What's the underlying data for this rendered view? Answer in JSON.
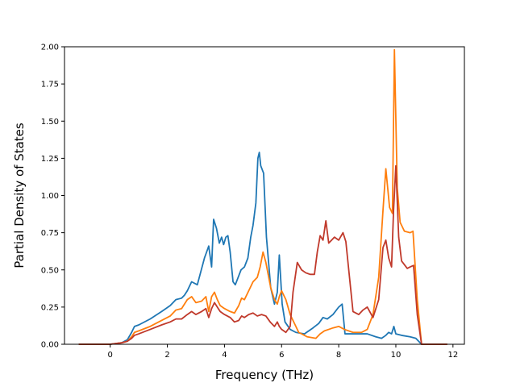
{
  "chart_data": {
    "type": "line",
    "title": "",
    "xlabel": "Frequency (THz)",
    "ylabel": "Partial Density of States",
    "xlim": [
      -1.6,
      12.4
    ],
    "ylim": [
      0,
      2.0
    ],
    "x_ticks": [
      0,
      2,
      4,
      6,
      8,
      10,
      12
    ],
    "x_tick_labels": [
      "0",
      "2",
      "4",
      "6",
      "8",
      "10",
      "12"
    ],
    "y_ticks": [
      0,
      0.25,
      0.5,
      0.75,
      1.0,
      1.25,
      1.5,
      1.75,
      2.0
    ],
    "y_tick_labels": [
      "0.00",
      "0.25",
      "0.50",
      "0.75",
      "1.00",
      "1.25",
      "1.50",
      "1.75",
      "2.00"
    ],
    "grid": false,
    "legend": "none",
    "colors": [
      "#1f77b4",
      "#ff7f0e",
      "#c0392b"
    ],
    "series": [
      {
        "color": "#1f77b4",
        "x": [
          -1.1,
          0.0,
          0.4,
          0.6,
          0.75,
          0.85,
          1.0,
          1.4,
          1.8,
          2.1,
          2.3,
          2.5,
          2.6,
          2.7,
          2.85,
          3.05,
          3.3,
          3.45,
          3.55,
          3.62,
          3.72,
          3.82,
          3.9,
          3.97,
          4.05,
          4.12,
          4.2,
          4.3,
          4.38,
          4.48,
          4.58,
          4.7,
          4.82,
          4.92,
          5.0,
          5.1,
          5.17,
          5.22,
          5.27,
          5.37,
          5.47,
          5.62,
          5.75,
          5.85,
          5.92,
          6.02,
          6.12,
          6.3,
          6.5,
          6.8,
          7.1,
          7.3,
          7.45,
          7.6,
          7.8,
          8.0,
          8.12,
          8.22,
          8.6,
          9.0,
          9.3,
          9.5,
          9.65,
          9.75,
          9.85,
          9.93,
          10.0,
          10.2,
          10.5,
          10.7,
          10.9,
          11.8
        ],
        "values": [
          0.0,
          0.0,
          0.01,
          0.03,
          0.08,
          0.12,
          0.13,
          0.17,
          0.22,
          0.26,
          0.3,
          0.31,
          0.33,
          0.36,
          0.42,
          0.4,
          0.58,
          0.66,
          0.52,
          0.84,
          0.78,
          0.68,
          0.72,
          0.67,
          0.72,
          0.73,
          0.62,
          0.42,
          0.4,
          0.45,
          0.5,
          0.52,
          0.58,
          0.72,
          0.8,
          0.95,
          1.25,
          1.29,
          1.2,
          1.15,
          0.72,
          0.38,
          0.27,
          0.35,
          0.6,
          0.27,
          0.15,
          0.1,
          0.08,
          0.07,
          0.11,
          0.14,
          0.18,
          0.17,
          0.2,
          0.25,
          0.27,
          0.07,
          0.07,
          0.07,
          0.05,
          0.04,
          0.06,
          0.08,
          0.07,
          0.12,
          0.07,
          0.06,
          0.05,
          0.04,
          0.0,
          0.0
        ]
      },
      {
        "color": "#ff7f0e",
        "x": [
          -1.1,
          0.0,
          0.4,
          0.6,
          0.75,
          0.85,
          1.0,
          1.4,
          1.8,
          2.1,
          2.3,
          2.5,
          2.7,
          2.85,
          3.0,
          3.2,
          3.35,
          3.45,
          3.55,
          3.65,
          3.75,
          3.85,
          4.0,
          4.2,
          4.35,
          4.5,
          4.6,
          4.7,
          4.85,
          5.0,
          5.15,
          5.25,
          5.35,
          5.45,
          5.62,
          5.75,
          5.85,
          5.92,
          6.0,
          6.15,
          6.3,
          6.6,
          6.9,
          7.2,
          7.35,
          7.5,
          7.65,
          7.8,
          8.0,
          8.2,
          8.5,
          8.8,
          9.0,
          9.2,
          9.4,
          9.55,
          9.65,
          9.78,
          9.88,
          9.95,
          10.05,
          10.15,
          10.3,
          10.5,
          10.6,
          10.75,
          10.9,
          11.8
        ],
        "values": [
          0.0,
          0.0,
          0.01,
          0.02,
          0.05,
          0.08,
          0.09,
          0.12,
          0.16,
          0.19,
          0.23,
          0.24,
          0.3,
          0.32,
          0.28,
          0.29,
          0.32,
          0.22,
          0.32,
          0.35,
          0.3,
          0.26,
          0.24,
          0.22,
          0.21,
          0.26,
          0.31,
          0.3,
          0.36,
          0.42,
          0.45,
          0.52,
          0.62,
          0.55,
          0.38,
          0.3,
          0.27,
          0.32,
          0.36,
          0.3,
          0.2,
          0.08,
          0.05,
          0.04,
          0.07,
          0.09,
          0.1,
          0.11,
          0.12,
          0.1,
          0.08,
          0.08,
          0.1,
          0.2,
          0.45,
          0.9,
          1.18,
          0.92,
          0.88,
          1.98,
          1.05,
          0.82,
          0.76,
          0.75,
          0.76,
          0.3,
          0.0,
          0.0
        ]
      },
      {
        "color": "#c0392b",
        "x": [
          -1.1,
          0.0,
          0.4,
          0.6,
          0.75,
          0.85,
          1.0,
          1.4,
          1.8,
          2.1,
          2.3,
          2.5,
          2.7,
          2.85,
          3.0,
          3.2,
          3.35,
          3.45,
          3.55,
          3.65,
          3.75,
          3.85,
          4.0,
          4.2,
          4.35,
          4.5,
          4.6,
          4.7,
          4.85,
          5.0,
          5.15,
          5.3,
          5.45,
          5.6,
          5.75,
          5.85,
          5.92,
          6.0,
          6.15,
          6.3,
          6.4,
          6.55,
          6.7,
          6.85,
          7.0,
          7.15,
          7.25,
          7.35,
          7.45,
          7.55,
          7.65,
          7.75,
          7.85,
          8.0,
          8.15,
          8.25,
          8.5,
          8.7,
          8.85,
          9.0,
          9.2,
          9.4,
          9.55,
          9.65,
          9.75,
          9.85,
          9.92,
          10.0,
          10.1,
          10.2,
          10.4,
          10.5,
          10.62,
          10.75,
          10.9,
          11.8
        ],
        "values": [
          0.0,
          0.0,
          0.01,
          0.02,
          0.04,
          0.06,
          0.07,
          0.1,
          0.13,
          0.15,
          0.17,
          0.17,
          0.2,
          0.22,
          0.2,
          0.22,
          0.24,
          0.18,
          0.24,
          0.28,
          0.25,
          0.22,
          0.2,
          0.18,
          0.15,
          0.16,
          0.19,
          0.18,
          0.2,
          0.21,
          0.19,
          0.2,
          0.19,
          0.15,
          0.12,
          0.15,
          0.12,
          0.1,
          0.08,
          0.12,
          0.35,
          0.55,
          0.5,
          0.48,
          0.47,
          0.47,
          0.62,
          0.73,
          0.7,
          0.83,
          0.68,
          0.7,
          0.72,
          0.7,
          0.75,
          0.69,
          0.22,
          0.2,
          0.23,
          0.25,
          0.18,
          0.3,
          0.65,
          0.7,
          0.58,
          0.52,
          0.9,
          1.2,
          0.72,
          0.56,
          0.51,
          0.52,
          0.53,
          0.2,
          0.0,
          0.0
        ]
      }
    ]
  }
}
